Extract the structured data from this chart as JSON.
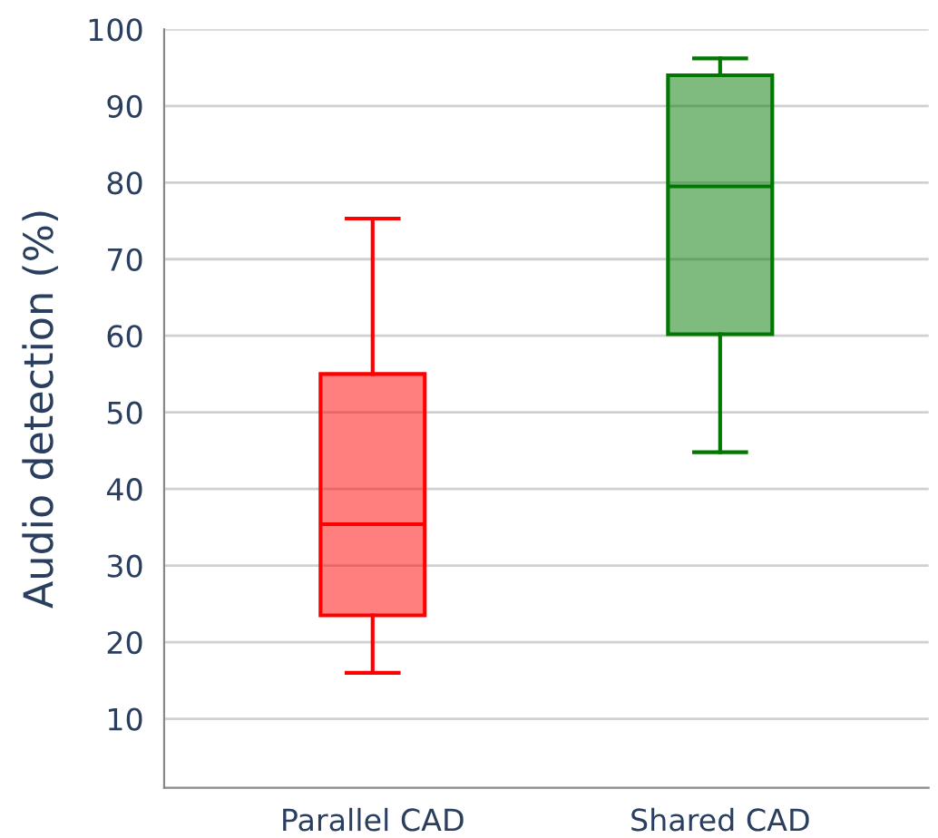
{
  "chart_data": {
    "type": "box",
    "ylabel": "Audio detection (%)",
    "categories": [
      "Parallel CAD",
      "Shared CAD"
    ],
    "colors": [
      "#ff0000",
      "#007700"
    ],
    "boxes": [
      {
        "low": 16,
        "q1": 23.5,
        "median": 35.4,
        "q3": 55,
        "high": 75.3
      },
      {
        "low": 44.8,
        "q1": 60.2,
        "median": 79.5,
        "q3": 94,
        "high": 96.2
      }
    ],
    "ylim": [
      1,
      100
    ],
    "yticks": [
      10,
      20,
      30,
      40,
      50,
      60,
      70,
      80,
      90,
      100
    ],
    "grid": "y"
  }
}
